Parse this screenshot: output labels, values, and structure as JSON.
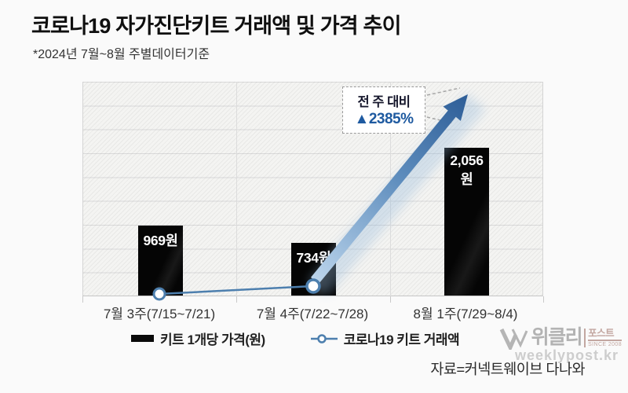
{
  "header": {
    "title": "코로나19 자가진단키트 거래액 및 가격 추이",
    "subtitle": "*2024년 7월~8월 주별데이터기준"
  },
  "chart_data": {
    "type": "bar",
    "title": "코로나19 자가진단키트 거래액 및 가격 추이",
    "categories": [
      "7월 3주(7/15~7/21)",
      "7월 4주(7/22~7/28)",
      "8월 1주(7/29~8/4)"
    ],
    "series": [
      {
        "name": "키트 1개당 가격(원)",
        "type": "bar",
        "values": [
          969,
          734,
          2056
        ],
        "labels": [
          "969원",
          "734원",
          "2,056원"
        ],
        "color": "#050505"
      },
      {
        "name": "코로나19 키트 거래액",
        "type": "line",
        "color": "#4d7fae",
        "visible_markers": 2,
        "annotation_text": "전 주 대비 ▲2385%"
      }
    ],
    "annotation": {
      "line1": "전 주 대비",
      "line2": "▲2385%"
    },
    "ylim": [
      0,
      2980
    ],
    "grid": "horizontal",
    "legend_position": "bottom"
  },
  "legend": {
    "price_label": "키트 1개당 가격(원)",
    "revenue_label": "코로나19 키트 거래액"
  },
  "footer": {
    "source": "자료=커넥트웨이브 다나와"
  },
  "watermark": {
    "wordmark_main": "위클리",
    "wordmark_sub": "포스트",
    "since": "SINCE 2008",
    "url": "weeklypost.kr"
  },
  "colors": {
    "bar": "#050505",
    "line": "#4d7fae",
    "arrow_dark": "#2d5d97",
    "arrow_light": "#b7d2ea",
    "callout_value": "#1e5aa0",
    "watermark_gray": "#b3b3b3",
    "watermark_red": "#c3a7a1"
  }
}
